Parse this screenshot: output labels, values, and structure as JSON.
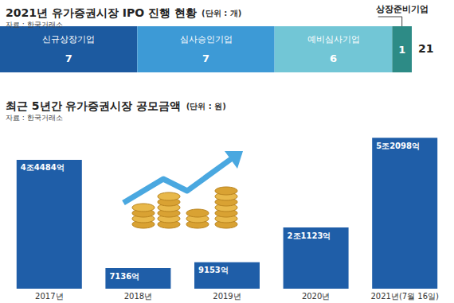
{
  "chart_data": [
    {
      "type": "bar",
      "title": "2021년 유가증권시장 IPO 진행 현황",
      "unit": "(단위 : 개)",
      "source": "자료 : 한국거래소",
      "orientation": "horizontal",
      "stacked": true,
      "data_labels": true,
      "tick_labels": false,
      "grid": false,
      "categories": [
        null
      ],
      "series": [
        {
          "name": "신규상장기업",
          "color": "#1c5aa0",
          "values": [
            7
          ]
        },
        {
          "name": "심사승인기업",
          "color": "#3d9ad6",
          "values": [
            7
          ]
        },
        {
          "name": "예비심사기업",
          "color": "#72c6d6",
          "values": [
            6
          ]
        },
        {
          "name": "상장준비기업",
          "color": "#2d8b86",
          "values": [
            1
          ]
        }
      ],
      "xlim": [
        0,
        21
      ],
      "annotations": [
        "21"
      ]
    },
    {
      "type": "bar",
      "title": "최근 5년간 유가증권시장 공모금액",
      "unit": "(단위 : 원)",
      "source": "자료 : 한국거래소",
      "data_labels": true,
      "tick_labels": "x",
      "grid": false,
      "color": "#1f5ea8",
      "categories": [
        "2017년",
        "2018년",
        "2019년",
        "2020년",
        "2021년(7월 16일)"
      ],
      "values": [
        44484,
        7136,
        9153,
        21123,
        52098
      ],
      "value_labels": [
        "4조4484억",
        "7136억",
        "9153억",
        "2조1123억",
        "5조2098억"
      ],
      "ylim": [
        0,
        56000
      ]
    }
  ]
}
